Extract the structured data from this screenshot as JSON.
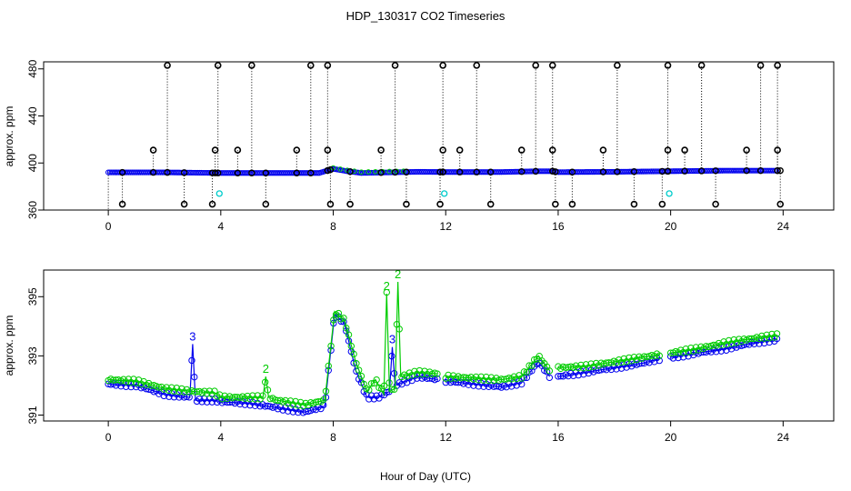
{
  "title": "HDP_130317  CO2 Timeseries",
  "xlabel": "Hour of Day (UTC)",
  "colors": {
    "black": "#000000",
    "blue": "#0000ee",
    "green": "#00cc00",
    "cyan": "#00cccc"
  },
  "chart_data": [
    {
      "type": "scatter",
      "ylabel": "approx. ppm",
      "xlim": [
        -2.3,
        25.8
      ],
      "ylim": [
        360,
        486
      ],
      "xticks": [
        0,
        4,
        8,
        12,
        16,
        20,
        24
      ],
      "yticks": [
        360,
        400,
        440,
        480
      ],
      "baseline": [
        [
          0,
          392
        ],
        [
          2,
          392
        ],
        [
          4,
          391.5
        ],
        [
          6,
          391.5
        ],
        [
          7.5,
          391.5
        ],
        [
          8,
          395
        ],
        [
          8.5,
          393
        ],
        [
          9,
          391.5
        ],
        [
          10,
          392
        ],
        [
          11,
          392.5
        ],
        [
          12,
          392.3
        ],
        [
          14,
          392.3
        ],
        [
          15.3,
          393
        ],
        [
          15.8,
          393
        ],
        [
          16,
          392.2
        ],
        [
          18,
          392.5
        ],
        [
          20,
          393
        ],
        [
          22,
          393.5
        ],
        [
          23.8,
          393.5
        ]
      ],
      "high_spikes": [
        2.1,
        3.9,
        5.1,
        7.2,
        7.8,
        10.2,
        11.9,
        13.1,
        15.2,
        15.8,
        18.1,
        19.9,
        21.1,
        23.2,
        23.8
      ],
      "high_value": 483,
      "mid_spikes": [
        1.6,
        3.8,
        4.6,
        6.7,
        7.8,
        9.7,
        11.9,
        12.5,
        14.7,
        15.8,
        17.6,
        19.9,
        20.5,
        22.7,
        23.8
      ],
      "mid_value": 411,
      "low_spikes": [
        0.5,
        2.7,
        3.7,
        5.6,
        7.9,
        8.6,
        10.6,
        11.8,
        13.6,
        15.9,
        16.5,
        18.7,
        19.7,
        21.6,
        23.9
      ],
      "low_value": 365,
      "cyan_points": [
        [
          3.95,
          374
        ],
        [
          11.95,
          374
        ],
        [
          19.95,
          374
        ]
      ],
      "series": [
        {
          "name": "3",
          "color": "blue"
        },
        {
          "name": "2",
          "color": "green"
        }
      ]
    },
    {
      "type": "line",
      "ylabel": "approx. ppm",
      "xlim": [
        -2.3,
        25.8
      ],
      "ylim": [
        390.8,
        395.9
      ],
      "xticks": [
        0,
        4,
        8,
        12,
        16,
        20,
        24
      ],
      "yticks": [
        391,
        393,
        395
      ],
      "series": [
        {
          "name": "3",
          "color": "blue",
          "label": "3",
          "segments": [
            [
              [
                0,
                392.05
              ],
              [
                1,
                392.0
              ],
              [
                2,
                391.7
              ],
              [
                2.9,
                391.6
              ],
              [
                3.0,
                393.4
              ],
              [
                3.1,
                391.5
              ],
              [
                3.8,
                391.5
              ],
              [
                4,
                391.45
              ],
              [
                5,
                391.4
              ],
              [
                6,
                391.25
              ],
              [
                7,
                391.1
              ],
              [
                7.7,
                391.3
              ],
              [
                8.05,
                394.4
              ],
              [
                8.4,
                394.1
              ],
              [
                8.8,
                392.5
              ],
              [
                9.2,
                391.6
              ],
              [
                9.6,
                391.6
              ],
              [
                10.0,
                391.8
              ],
              [
                10.1,
                393.3
              ],
              [
                10.2,
                392.0
              ],
              [
                11,
                392.3
              ],
              [
                11.7,
                392.2
              ]
            ],
            [
              [
                12,
                392.15
              ],
              [
                13,
                392.05
              ],
              [
                14,
                391.95
              ],
              [
                14.7,
                392.1
              ],
              [
                15.3,
                392.8
              ],
              [
                15.7,
                392.3
              ]
            ],
            [
              [
                16,
                392.3
              ],
              [
                17,
                392.45
              ],
              [
                18,
                392.6
              ],
              [
                19,
                392.75
              ],
              [
                19.6,
                392.9
              ]
            ],
            [
              [
                20,
                392.95
              ],
              [
                21,
                393.1
              ],
              [
                22,
                393.25
              ],
              [
                23,
                393.45
              ],
              [
                23.8,
                393.55
              ]
            ]
          ]
        },
        {
          "name": "2",
          "color": "green",
          "label": "2",
          "segments": [
            [
              [
                0,
                392.2
              ],
              [
                1,
                392.15
              ],
              [
                2,
                391.9
              ],
              [
                3,
                391.8
              ],
              [
                3.8,
                391.75
              ],
              [
                4,
                391.6
              ],
              [
                5,
                391.6
              ],
              [
                5.5,
                391.6
              ],
              [
                5.6,
                392.3
              ],
              [
                5.7,
                391.6
              ],
              [
                6,
                391.5
              ],
              [
                7,
                391.35
              ],
              [
                7.7,
                391.5
              ],
              [
                8.05,
                394.5
              ],
              [
                8.4,
                394.2
              ],
              [
                8.8,
                392.8
              ],
              [
                9.2,
                391.8
              ],
              [
                9.5,
                392.2
              ],
              [
                9.8,
                391.7
              ],
              [
                9.9,
                395.1
              ],
              [
                10.0,
                391.8
              ],
              [
                10.2,
                391.9
              ],
              [
                10.3,
                395.5
              ],
              [
                10.4,
                392.3
              ],
              [
                11,
                392.45
              ],
              [
                11.7,
                392.4
              ]
            ],
            [
              [
                12,
                392.3
              ],
              [
                13,
                392.25
              ],
              [
                14,
                392.2
              ],
              [
                14.7,
                392.3
              ],
              [
                15.3,
                393.0
              ],
              [
                15.7,
                392.5
              ]
            ],
            [
              [
                16,
                392.6
              ],
              [
                17,
                392.65
              ],
              [
                18,
                392.8
              ],
              [
                19,
                392.95
              ],
              [
                19.6,
                393.05
              ]
            ],
            [
              [
                20,
                393.1
              ],
              [
                21,
                393.25
              ],
              [
                22,
                393.45
              ],
              [
                23,
                393.6
              ],
              [
                23.8,
                393.7
              ]
            ]
          ]
        }
      ]
    }
  ]
}
